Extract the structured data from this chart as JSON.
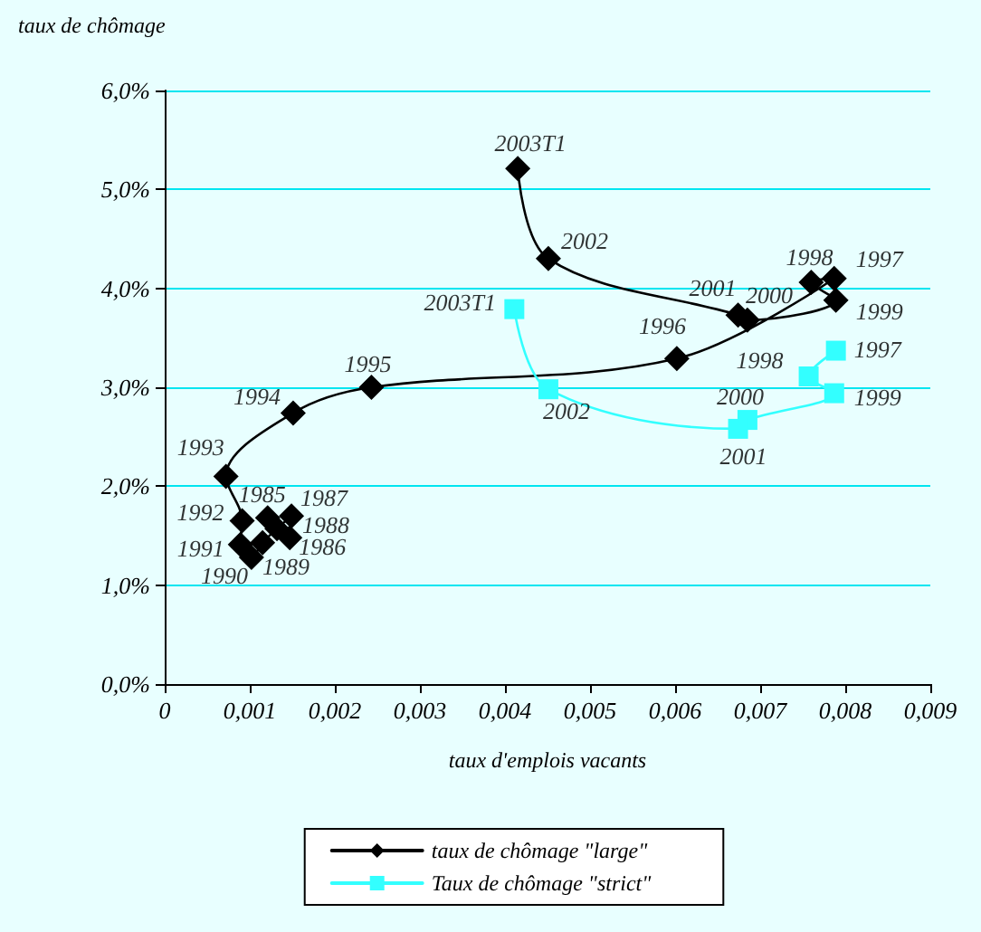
{
  "chart_data": {
    "type": "line",
    "ylabel": "taux de chômage",
    "xlabel": "taux d'emplois vacants",
    "xlim": [
      0,
      0.009
    ],
    "xticks": [
      0,
      {
        "value": 0.001,
        "label": "0,001"
      },
      {
        "value": 0.002,
        "label": "0,002"
      },
      {
        "value": 0.003,
        "label": "0,003"
      },
      {
        "value": 0.004,
        "label": "0,004"
      },
      {
        "value": 0.005,
        "label": "0,005"
      },
      {
        "value": 0.006,
        "label": "0,006"
      },
      {
        "value": 0.007,
        "label": "0,007"
      },
      {
        "value": 0.008,
        "label": "0,008"
      },
      {
        "value": 0.009,
        "label": "0,009"
      }
    ],
    "ylim": [
      0,
      6
    ],
    "yticks": [
      {
        "value": 0,
        "label": "0,0%"
      },
      {
        "value": 1,
        "label": "1,0%"
      },
      {
        "value": 2,
        "label": "2,0%"
      },
      {
        "value": 3,
        "label": "3,0%"
      },
      {
        "value": 4,
        "label": "4,0%"
      },
      {
        "value": 5,
        "label": "5,0%"
      },
      {
        "value": 6,
        "label": "6,0%"
      }
    ],
    "grid": "y",
    "legend": "bottom",
    "series": [
      {
        "name": "taux de chômage \"large\"",
        "color": "#000000",
        "marker": "diamond",
        "x": [
          0.00121,
          0.00147,
          0.00149,
          0.00132,
          0.00115,
          0.00102,
          0.00089,
          0.00091,
          0.00072,
          0.00151,
          0.00243,
          0.00602,
          0.00787,
          0.0076,
          0.00789,
          0.00685,
          0.00674,
          0.00451,
          0.00415
        ],
        "values": [
          1.68,
          1.48,
          1.7,
          1.57,
          1.43,
          1.28,
          1.41,
          1.65,
          2.1,
          2.74,
          3.0,
          3.29,
          4.1,
          4.06,
          3.88,
          3.68,
          3.73,
          4.3,
          5.21
        ]
      },
      {
        "name": "Taux de chômage \"strict\"",
        "color": "#33ffff",
        "marker": "square",
        "x": [
          0.00789,
          0.00757,
          0.00787,
          0.00685,
          0.00674,
          0.00451,
          0.00411
        ],
        "values": [
          3.37,
          3.11,
          2.94,
          2.67,
          2.58,
          2.98,
          3.79
        ]
      }
    ],
    "annotations": [
      {
        "text": "1985",
        "x": 0.00121,
        "y": 1.68
      },
      {
        "text": "1986",
        "x": 0.00147,
        "y": 1.48
      },
      {
        "text": "1987",
        "x": 0.00149,
        "y": 1.7
      },
      {
        "text": "1988",
        "x": 0.00132,
        "y": 1.57
      },
      {
        "text": "1989",
        "x": 0.00115,
        "y": 1.43
      },
      {
        "text": "1990",
        "x": 0.00102,
        "y": 1.28
      },
      {
        "text": "1991",
        "x": 0.00089,
        "y": 1.41
      },
      {
        "text": "1992",
        "x": 0.00091,
        "y": 1.65
      },
      {
        "text": "1993",
        "x": 0.00072,
        "y": 2.1
      },
      {
        "text": "1994",
        "x": 0.00151,
        "y": 2.74
      },
      {
        "text": "1995",
        "x": 0.00243,
        "y": 3.0
      },
      {
        "text": "1996",
        "x": 0.00602,
        "y": 3.29
      },
      {
        "text": "1997",
        "x": 0.00787,
        "y": 4.1
      },
      {
        "text": "1998",
        "x": 0.0076,
        "y": 4.06
      },
      {
        "text": "1999",
        "x": 0.00789,
        "y": 3.88
      },
      {
        "text": "2000",
        "x": 0.00685,
        "y": 3.68
      },
      {
        "text": "2001",
        "x": 0.00674,
        "y": 3.73
      },
      {
        "text": "2002",
        "x": 0.00451,
        "y": 4.3
      },
      {
        "text": "2003T1",
        "x": 0.00415,
        "y": 5.21
      },
      {
        "text": "1997",
        "x": 0.00789,
        "y": 3.37
      },
      {
        "text": "1998",
        "x": 0.00757,
        "y": 3.11
      },
      {
        "text": "1999",
        "x": 0.00787,
        "y": 2.94
      },
      {
        "text": "2000",
        "x": 0.00685,
        "y": 2.67
      },
      {
        "text": "2001",
        "x": 0.00674,
        "y": 2.58
      },
      {
        "text": "2002",
        "x": 0.00451,
        "y": 2.98
      },
      {
        "text": "2003T1",
        "x": 0.00411,
        "y": 3.79
      }
    ]
  }
}
